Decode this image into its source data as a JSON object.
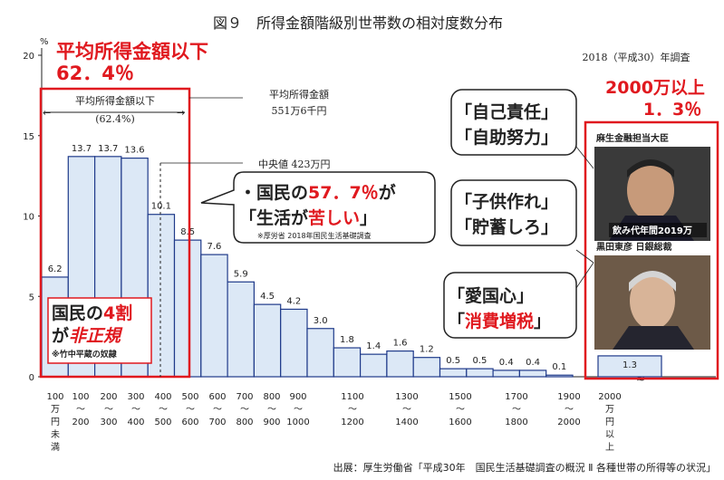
{
  "title": "図９　所得金額階級別世帯数の相対度数分布",
  "survey": "2018（平成30）年調査",
  "y_unit": "%",
  "source": "出展：厚生労働省「平成30年　国民生活基礎調査の概況 Ⅱ 各種世帯の所得等の状況」",
  "colors": {
    "bar": "#dce8f6",
    "bar_stroke": "#1f3a8a",
    "red": "#e0191f",
    "dark": "#222222"
  },
  "chart_data": {
    "type": "bar",
    "title": "所得金額階級別世帯数の相対度数分布",
    "ylabel": "%",
    "ylim": [
      0,
      20
    ],
    "yticks": [
      0,
      5,
      10,
      15,
      20
    ],
    "values": [
      6.2,
      13.7,
      13.7,
      13.6,
      10.1,
      8.5,
      7.6,
      5.9,
      4.5,
      4.2,
      3.0,
      1.8,
      1.4,
      1.6,
      1.2,
      0.5,
      0.5,
      0.4,
      0.4,
      0.1,
      1.3
    ],
    "value_labels": [
      "6.2",
      "13.7",
      "13.7",
      "13.6",
      "10.1",
      "8.5",
      "7.6",
      "5.9",
      "4.5",
      "4.2",
      "3.0",
      "1.8",
      "1.4",
      "1.6",
      "1.2",
      "0.5",
      "0.5",
      "0.4",
      "0.4",
      "0.1",
      "1.3"
    ],
    "xticks": [
      [
        "100",
        "万",
        "円",
        "未",
        "満"
      ],
      [
        "100",
        "〜",
        "200"
      ],
      [
        "200",
        "〜",
        "300"
      ],
      [
        "300",
        "〜",
        "400"
      ],
      [
        "400",
        "〜",
        "500"
      ],
      [
        "500",
        "〜",
        "600"
      ],
      [
        "600",
        "〜",
        "700"
      ],
      [
        "700",
        "〜",
        "800"
      ],
      [
        "800",
        "〜",
        "900"
      ],
      [
        "900",
        "〜",
        "1000"
      ],
      [
        "1100",
        "〜",
        "1200"
      ],
      [
        "1300",
        "〜",
        "1400"
      ],
      [
        "1500",
        "〜",
        "1600"
      ],
      [
        "1700",
        "〜",
        "1800"
      ],
      [
        "1900",
        "〜",
        "2000"
      ],
      [
        "2000",
        "万",
        "円",
        "以",
        "上"
      ]
    ]
  },
  "annotations": {
    "avg_below_box_label": "平均所得金額以下",
    "avg_below_box_pct": "(62.4%)",
    "avg_label": "平均所得金額",
    "avg_value": "551万6千円",
    "median_label": "中央値 423万円",
    "red_top_line1": "平均所得金額以下",
    "red_top_line2": "62．4％",
    "red_right_line1": "2000万以上",
    "red_right_line2": "1．3％",
    "bubble_main_a": "・国民の",
    "bubble_main_b": "57．7％",
    "bubble_main_c": "が",
    "bubble_main_d": "「生活が",
    "bubble_main_e": "苦しい",
    "bubble_main_f": "」",
    "bubble_main_note": "※厚労省 2018年国民生活基礎調査",
    "bubble1_l1": "「自己責任」",
    "bubble1_l2": "「自助努力」",
    "bubble2_l1": "「子供作れ」",
    "bubble2_l2": "「貯蓄しろ」",
    "bubble3_l1": "「愛国心」",
    "bubble3_l2_a": "「",
    "bubble3_l2_b": "消費増税",
    "bubble3_l2_c": "」",
    "photo1_caption": "麻生金融担当大臣",
    "photo1_overlay": "飲み代年間2019万",
    "photo2_caption": "黒田東彦 日銀総裁",
    "left_box_l1_a": "国民の",
    "left_box_l1_b": "4割",
    "left_box_l2_a": "が",
    "left_box_l2_b": "非正規",
    "left_box_note": "※竹中平蔵の奴隷"
  }
}
